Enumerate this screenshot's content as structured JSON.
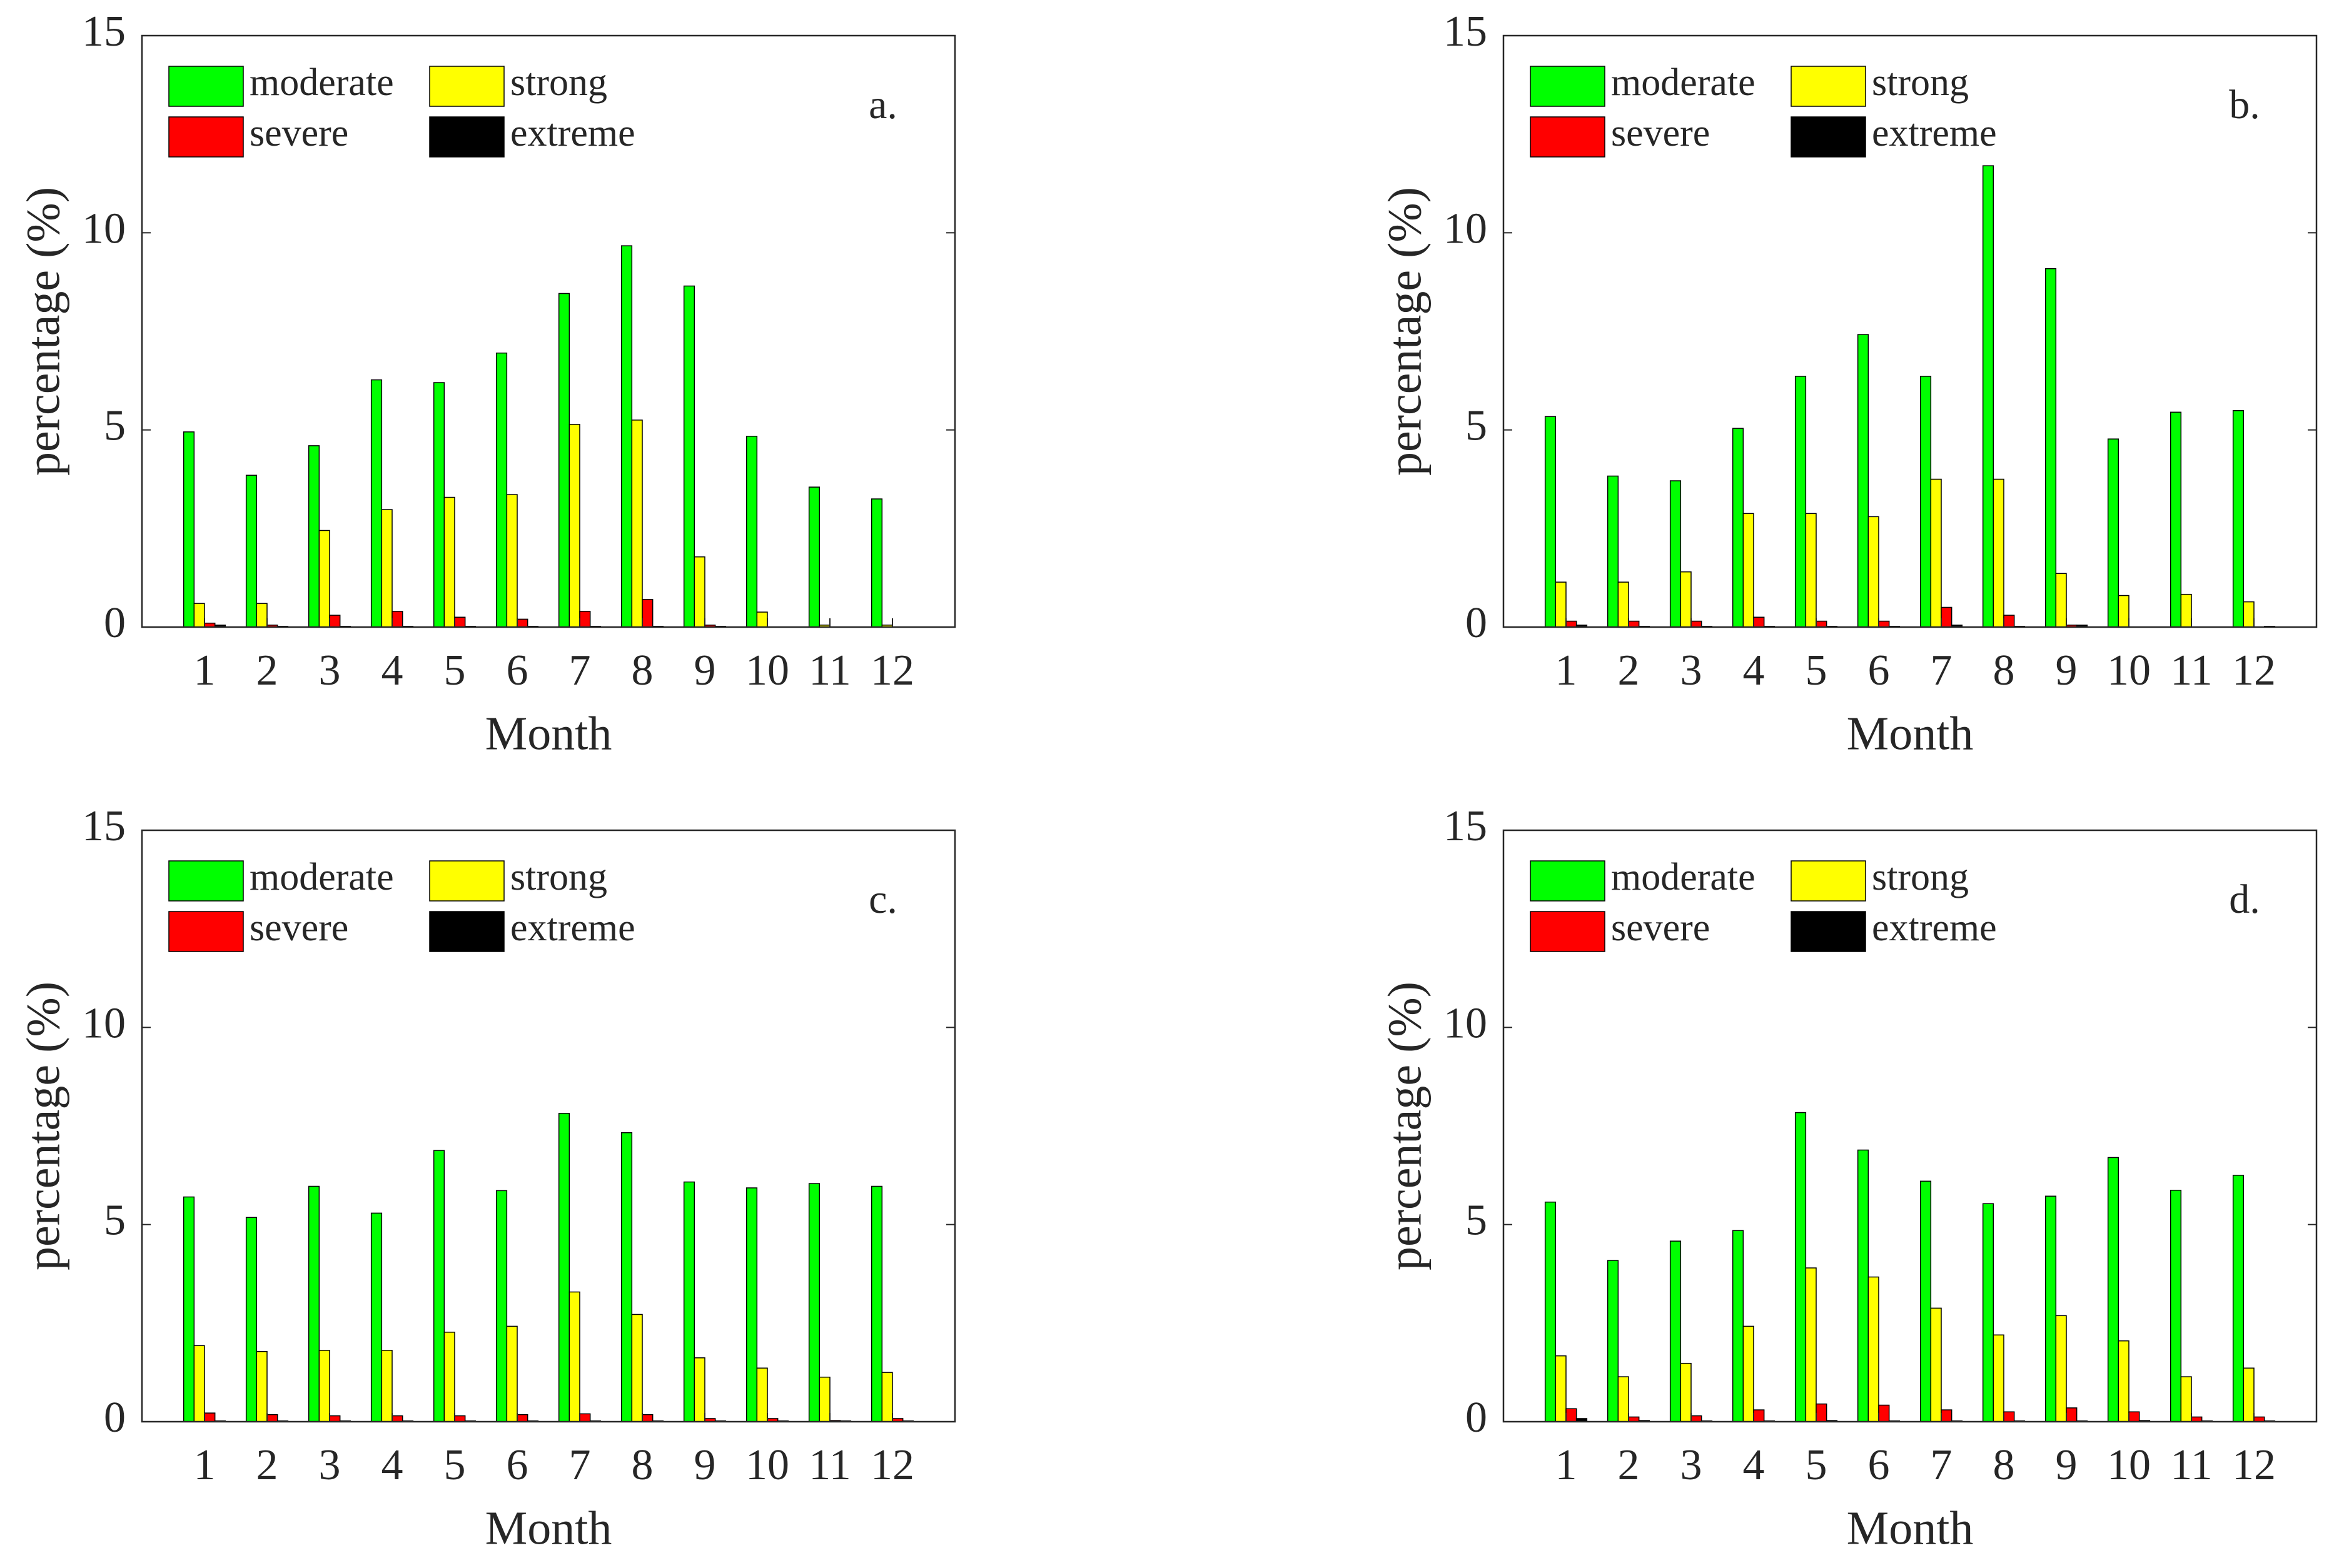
{
  "chart_data": [
    {
      "type": "bar",
      "annotation": "a.",
      "xlabel": "Month",
      "ylabel": "percentage (%)",
      "categories": [
        "1",
        "2",
        "3",
        "4",
        "5",
        "6",
        "7",
        "8",
        "9",
        "10",
        "11",
        "12"
      ],
      "ylim": [
        0,
        15
      ],
      "yticks": [
        0,
        5,
        10,
        15
      ],
      "legend": "upper left",
      "series": [
        {
          "name": "moderate",
          "color": "#00ff00",
          "values": [
            4.95,
            3.85,
            4.6,
            6.27,
            6.2,
            6.95,
            8.46,
            9.67,
            8.65,
            4.84,
            3.55,
            3.25
          ]
        },
        {
          "name": "strong",
          "color": "#ffff00",
          "values": [
            0.6,
            0.6,
            2.45,
            2.98,
            3.29,
            3.36,
            5.14,
            5.25,
            1.78,
            0.38,
            0.05,
            0.05
          ]
        },
        {
          "name": "severe",
          "color": "#ff0000",
          "values": [
            0.1,
            0.05,
            0.3,
            0.4,
            0.25,
            0.2,
            0.4,
            0.7,
            0.05,
            0,
            0,
            0
          ]
        },
        {
          "name": "extreme",
          "color": "#000000",
          "values": [
            0.05,
            0.02,
            0.02,
            0.02,
            0.02,
            0.02,
            0.02,
            0.02,
            0.02,
            0,
            0,
            0
          ]
        }
      ]
    },
    {
      "type": "bar",
      "annotation": "b.",
      "xlabel": "Month",
      "ylabel": "percentage (%)",
      "categories": [
        "1",
        "2",
        "3",
        "4",
        "5",
        "6",
        "7",
        "8",
        "9",
        "10",
        "11",
        "12"
      ],
      "ylim": [
        0,
        15
      ],
      "yticks": [
        0,
        5,
        10,
        15
      ],
      "legend": "upper left",
      "series": [
        {
          "name": "moderate",
          "color": "#00ff00",
          "values": [
            5.34,
            3.83,
            3.71,
            5.04,
            6.36,
            7.42,
            6.36,
            11.7,
            9.09,
            4.77,
            5.45,
            5.49
          ]
        },
        {
          "name": "strong",
          "color": "#ffff00",
          "values": [
            1.14,
            1.14,
            1.4,
            2.88,
            2.88,
            2.8,
            3.75,
            3.75,
            1.36,
            0.8,
            0.83,
            0.64
          ]
        },
        {
          "name": "severe",
          "color": "#ff0000",
          "values": [
            0.15,
            0.15,
            0.15,
            0.25,
            0.15,
            0.15,
            0.5,
            0.3,
            0.05,
            0,
            0,
            0
          ]
        },
        {
          "name": "extreme",
          "color": "#000000",
          "values": [
            0.05,
            0.02,
            0.02,
            0.02,
            0.02,
            0.02,
            0.05,
            0.02,
            0.05,
            0,
            0,
            0.02
          ]
        }
      ]
    },
    {
      "type": "bar",
      "annotation": "c.",
      "xlabel": "Month",
      "ylabel": "percentage (%)",
      "categories": [
        "1",
        "2",
        "3",
        "4",
        "5",
        "6",
        "7",
        "8",
        "9",
        "10",
        "11",
        "12"
      ],
      "ylim": [
        0,
        15
      ],
      "yticks": [
        0,
        5,
        10,
        15
      ],
      "legend": "upper left",
      "series": [
        {
          "name": "moderate",
          "color": "#00ff00",
          "values": [
            5.7,
            5.18,
            5.97,
            5.29,
            6.88,
            5.86,
            7.82,
            7.33,
            6.08,
            5.93,
            6.04,
            5.97
          ]
        },
        {
          "name": "strong",
          "color": "#ffff00",
          "values": [
            1.93,
            1.78,
            1.81,
            1.81,
            2.27,
            2.42,
            3.29,
            2.72,
            1.62,
            1.36,
            1.13,
            1.25
          ]
        },
        {
          "name": "severe",
          "color": "#ff0000",
          "values": [
            0.22,
            0.18,
            0.15,
            0.15,
            0.15,
            0.18,
            0.2,
            0.18,
            0.08,
            0.08,
            0.03,
            0.08
          ]
        },
        {
          "name": "extreme",
          "color": "#000000",
          "values": [
            0.02,
            0.02,
            0.02,
            0.02,
            0.02,
            0.02,
            0.02,
            0.02,
            0.02,
            0.02,
            0.02,
            0.02
          ]
        }
      ]
    },
    {
      "type": "bar",
      "annotation": "d.",
      "xlabel": "Month",
      "ylabel": "percentage (%)",
      "categories": [
        "1",
        "2",
        "3",
        "4",
        "5",
        "6",
        "7",
        "8",
        "9",
        "10",
        "11",
        "12"
      ],
      "ylim": [
        0,
        15
      ],
      "yticks": [
        0,
        5,
        10,
        15
      ],
      "legend": "upper left",
      "series": [
        {
          "name": "moderate",
          "color": "#00ff00",
          "values": [
            5.57,
            4.09,
            4.58,
            4.85,
            7.84,
            6.89,
            6.1,
            5.53,
            5.72,
            6.7,
            5.87,
            6.25
          ]
        },
        {
          "name": "strong",
          "color": "#ffff00",
          "values": [
            1.67,
            1.14,
            1.48,
            2.42,
            3.9,
            3.67,
            2.88,
            2.2,
            2.69,
            2.05,
            1.14,
            1.36
          ]
        },
        {
          "name": "severe",
          "color": "#ff0000",
          "values": [
            0.33,
            0.12,
            0.15,
            0.3,
            0.45,
            0.42,
            0.3,
            0.25,
            0.35,
            0.25,
            0.12,
            0.12
          ]
        },
        {
          "name": "extreme",
          "color": "#000000",
          "values": [
            0.08,
            0.03,
            0.02,
            0.02,
            0.03,
            0.02,
            0.02,
            0.02,
            0.02,
            0.03,
            0.02,
            0.02
          ]
        }
      ]
    }
  ]
}
